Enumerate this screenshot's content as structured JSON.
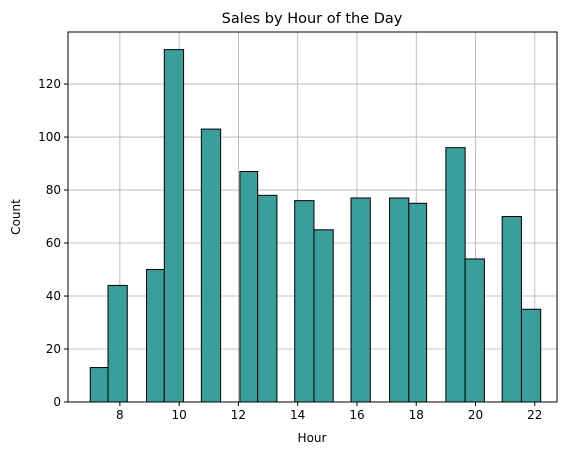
{
  "chart_data": {
    "type": "bar",
    "title": "Sales by Hour of the Day",
    "xlabel": "Hour",
    "ylabel": "Count",
    "xlim": [
      6.25,
      22.75
    ],
    "ylim": [
      0,
      139.65
    ],
    "xticks": [
      8,
      10,
      12,
      14,
      16,
      18,
      20,
      22
    ],
    "yticks": [
      0,
      20,
      40,
      60,
      80,
      100,
      120
    ],
    "grid": true,
    "bar_color": "#3a9e9a",
    "edge_color": "#000000",
    "bins": [
      {
        "x0": 7.0,
        "x1": 7.6,
        "value": 13
      },
      {
        "x0": 7.6,
        "x1": 8.25,
        "value": 44
      },
      {
        "x0": 8.9,
        "x1": 9.5,
        "value": 50
      },
      {
        "x0": 9.5,
        "x1": 10.15,
        "value": 133
      },
      {
        "x0": 10.75,
        "x1": 11.4,
        "value": 103
      },
      {
        "x0": 12.05,
        "x1": 12.65,
        "value": 87
      },
      {
        "x0": 12.65,
        "x1": 13.3,
        "value": 78
      },
      {
        "x0": 13.9,
        "x1": 14.55,
        "value": 76
      },
      {
        "x0": 14.55,
        "x1": 15.2,
        "value": 65
      },
      {
        "x0": 15.8,
        "x1": 16.45,
        "value": 77
      },
      {
        "x0": 17.1,
        "x1": 17.75,
        "value": 77
      },
      {
        "x0": 17.75,
        "x1": 18.35,
        "value": 75
      },
      {
        "x0": 19.0,
        "x1": 19.65,
        "value": 96
      },
      {
        "x0": 19.65,
        "x1": 20.3,
        "value": 54
      },
      {
        "x0": 20.9,
        "x1": 21.55,
        "value": 70
      },
      {
        "x0": 21.55,
        "x1": 22.2,
        "value": 35
      }
    ]
  }
}
